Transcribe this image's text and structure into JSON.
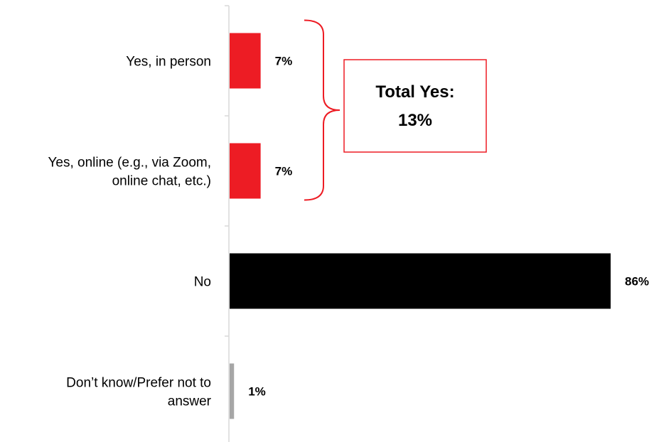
{
  "chart_data": {
    "type": "bar",
    "orientation": "horizontal",
    "categories": [
      [
        "Yes, in person"
      ],
      [
        "Yes, online (e.g., via Zoom,",
        "online chat, etc.)"
      ],
      [
        "No"
      ],
      [
        "Don’t know/Prefer not to",
        "answer"
      ]
    ],
    "values": [
      7,
      7,
      86,
      1
    ],
    "value_labels": [
      "7%",
      "7%",
      "86%",
      "1%"
    ],
    "bar_colors": [
      "#ed1c24",
      "#ed1c24",
      "#000000",
      "#a6a6a6"
    ],
    "xlim": [
      0,
      86
    ],
    "title": "",
    "xlabel": "",
    "ylabel": "",
    "grid": false,
    "legend": "none",
    "callout": {
      "lines": [
        "Total Yes:",
        "13%"
      ],
      "value": 13,
      "brackets": [
        0,
        1
      ],
      "border_color": "#ed1c24"
    }
  }
}
